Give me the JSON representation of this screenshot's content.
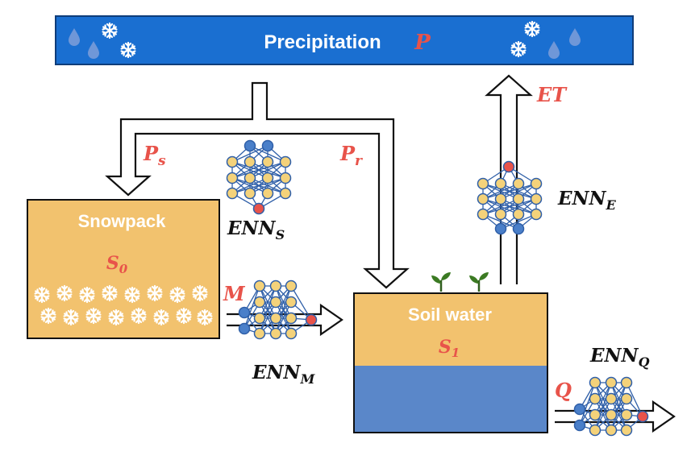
{
  "precipitation": {
    "label": "Precipitation",
    "symbol": "P"
  },
  "snowpack": {
    "label": "Snowpack",
    "symbol": "S",
    "subscript": "0"
  },
  "soil_water": {
    "label": "Soil water",
    "symbol": "S",
    "subscript": "1"
  },
  "fluxes": {
    "snowfall": {
      "symbol": "P",
      "subscript": "s"
    },
    "rainfall": {
      "symbol": "P",
      "subscript": "r"
    },
    "melt": {
      "symbol": "M"
    },
    "evapotranspiration": {
      "symbol": "ET"
    },
    "runoff": {
      "symbol": "Q"
    }
  },
  "networks": {
    "snow": {
      "symbol": "ENN",
      "subscript": "S"
    },
    "melt": {
      "symbol": "ENN",
      "subscript": "M"
    },
    "evap": {
      "symbol": "ENN",
      "subscript": "E"
    },
    "runoff": {
      "symbol": "ENN",
      "subscript": "Q"
    }
  },
  "colors": {
    "precip_bar": "#1a6fd1",
    "store": "#f2c26e",
    "groundwater": "#5a87c9",
    "node_blue": "#4a7fc9",
    "node_yellow": "#f4d27a",
    "node_red": "#e8534a",
    "label_red": "#e8534a"
  },
  "icons": [
    "raindrop-icon",
    "snowflake-icon",
    "plant-icon",
    "neural-network-icon"
  ]
}
